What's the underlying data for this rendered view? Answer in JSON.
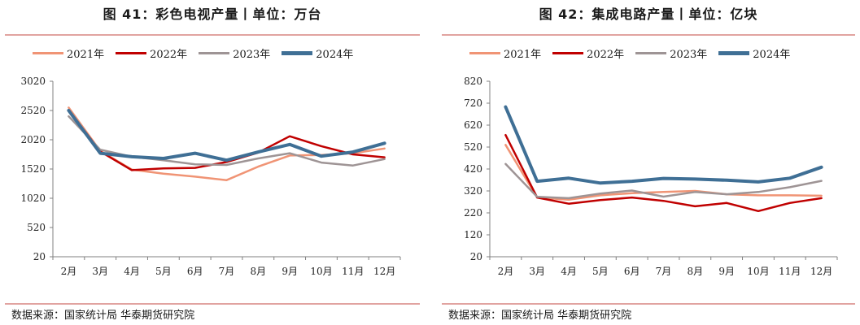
{
  "chart_data": [
    {
      "type": "line",
      "title": "图 41：彩色电视产量丨单位：万台",
      "source": "数据来源：国家统计局 华泰期货研究院",
      "categories": [
        "2月",
        "3月",
        "4月",
        "5月",
        "6月",
        "7月",
        "8月",
        "9月",
        "10月",
        "11月",
        "12月"
      ],
      "ylim": [
        20,
        3020
      ],
      "yticks": [
        "3020",
        "2520",
        "2020",
        "1520",
        "1020",
        "520",
        "20"
      ],
      "legend_position": "top",
      "grid": false,
      "series": [
        {
          "name": "2021年",
          "color": "#f09475",
          "width": 2.5,
          "values": [
            2570,
            1830,
            1510,
            1440,
            1390,
            1330,
            1560,
            1750,
            1760,
            1790,
            1870
          ]
        },
        {
          "name": "2022年",
          "color": "#c00000",
          "width": 2.5,
          "values": [
            2520,
            1820,
            1500,
            1530,
            1540,
            1640,
            1800,
            2080,
            1910,
            1770,
            1720
          ]
        },
        {
          "name": "2023年",
          "color": "#9e9495",
          "width": 2.5,
          "values": [
            2420,
            1850,
            1730,
            1670,
            1600,
            1590,
            1700,
            1790,
            1630,
            1580,
            1690
          ]
        },
        {
          "name": "2024年",
          "color": "#3f6f95",
          "width": 4,
          "values": [
            2520,
            1790,
            1730,
            1700,
            1790,
            1670,
            1810,
            1940,
            1740,
            1810,
            1960
          ]
        }
      ]
    },
    {
      "type": "line",
      "title": "图 42：集成电路产量丨单位：亿块",
      "source": "数据来源：国家统计局 华泰期货研究院",
      "categories": [
        "2月",
        "3月",
        "4月",
        "5月",
        "6月",
        "7月",
        "8月",
        "9月",
        "10月",
        "11月",
        "12月"
      ],
      "ylim": [
        20,
        820
      ],
      "yticks": [
        "820",
        "720",
        "620",
        "520",
        "420",
        "320",
        "220",
        "120",
        "20"
      ],
      "legend_position": "top",
      "grid": false,
      "series": [
        {
          "name": "2021年",
          "color": "#f09475",
          "width": 2.5,
          "values": [
            530,
            290,
            280,
            300,
            310,
            315,
            320,
            305,
            300,
            300,
            298
          ]
        },
        {
          "name": "2022年",
          "color": "#c00000",
          "width": 2.5,
          "values": [
            575,
            290,
            262,
            278,
            290,
            275,
            250,
            265,
            228,
            265,
            287
          ]
        },
        {
          "name": "2023年",
          "color": "#9e9495",
          "width": 2.5,
          "values": [
            443,
            293,
            287,
            308,
            322,
            294,
            315,
            305,
            315,
            337,
            366
          ]
        },
        {
          "name": "2024年",
          "color": "#3f6f95",
          "width": 4,
          "values": [
            703,
            364,
            378,
            356,
            364,
            377,
            374,
            369,
            361,
            378,
            428
          ]
        }
      ]
    }
  ]
}
